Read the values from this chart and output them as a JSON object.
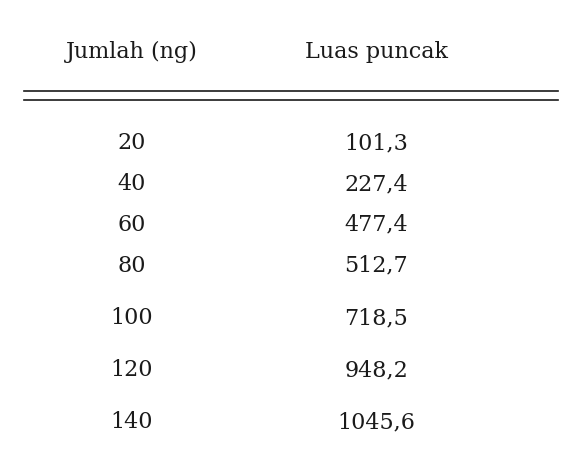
{
  "col1_header": "Jumlah (ng)",
  "col2_header": "Luas puncak",
  "col1_values": [
    "20",
    "40",
    "60",
    "80",
    "100",
    "120",
    "140"
  ],
  "col2_values": [
    "101,3",
    "227,4",
    "477,4",
    "512,7",
    "718,5",
    "948,2",
    "1045,6"
  ],
  "bg_color": "#ffffff",
  "text_color": "#1a1a1a",
  "header_fontsize": 16,
  "data_fontsize": 16,
  "figsize": [
    5.82,
    4.68
  ],
  "dpi": 100
}
